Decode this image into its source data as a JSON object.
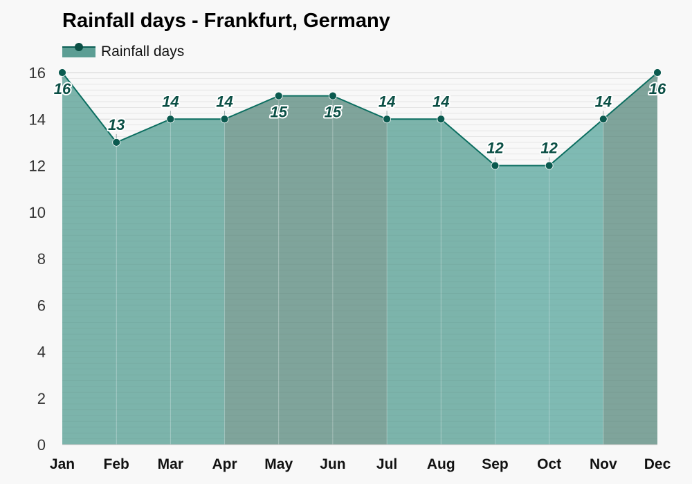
{
  "chart_data": {
    "type": "area",
    "title": "Rainfall days - Frankfurt, Germany",
    "categories": [
      "Jan",
      "Feb",
      "Mar",
      "Apr",
      "May",
      "Jun",
      "Jul",
      "Aug",
      "Sep",
      "Oct",
      "Nov",
      "Dec"
    ],
    "series": [
      {
        "name": "Rainfall days",
        "values": [
          16,
          13,
          14,
          14,
          15,
          15,
          14,
          14,
          12,
          12,
          14,
          16
        ]
      }
    ],
    "ylim": [
      0,
      16
    ],
    "yticks": [
      0,
      2,
      4,
      6,
      8,
      10,
      12,
      14,
      16
    ],
    "data_labels": true,
    "legend": "top-left",
    "grid": true,
    "colors": {
      "line": "#0b6e60",
      "point": "#0b5a4f",
      "label": "#0b4f45",
      "band_winter": "#7fa49b",
      "band_spring_autumn": "#7cb4ab",
      "band_summer": "#7fbab3",
      "background": "#f8f8f8"
    }
  }
}
